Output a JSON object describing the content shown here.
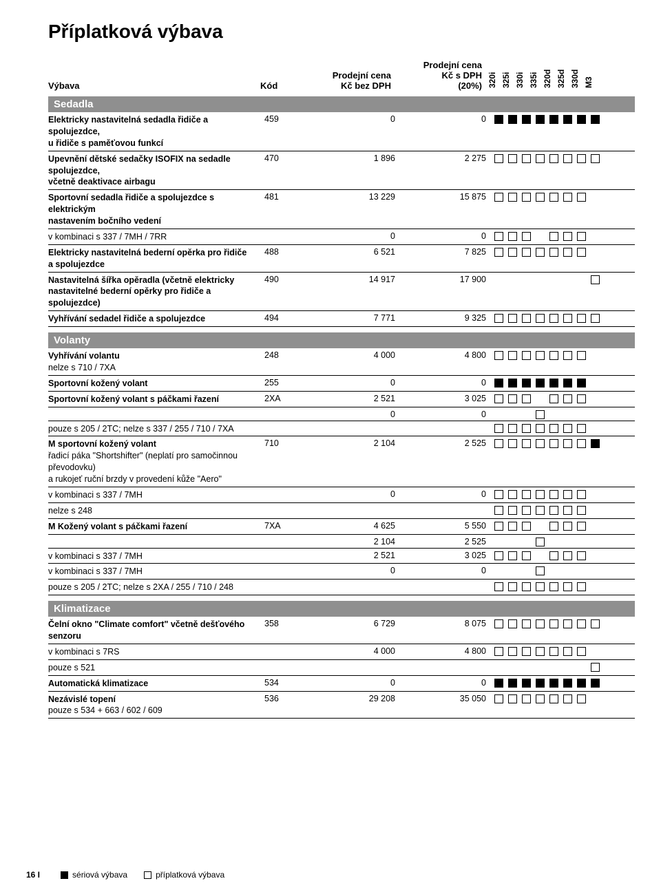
{
  "title": "Příplatková výbava",
  "columns": {
    "desc": "Výbava",
    "code": "Kód",
    "price1_line1": "Prodejní cena",
    "price1_line2": "Kč bez DPH",
    "price2_line1": "Prodejní cena",
    "price2_line2": "Kč s DPH",
    "price2_line3": "(20%)"
  },
  "models": [
    "320i",
    "325i",
    "330i",
    "335i",
    "320d",
    "325d",
    "330d",
    "M3"
  ],
  "sections": [
    {
      "title": "Sedadla",
      "rows": [
        {
          "desc": "Elektricky nastavitelná sedadla řidiče a spolujezdce,\nu řidiče s paměťovou funkcí",
          "code": "459",
          "p1": "0",
          "p2": "0",
          "m": [
            "f",
            "f",
            "f",
            "f",
            "f",
            "f",
            "f",
            "f"
          ]
        },
        {
          "desc": "Upevnění dětské sedačky ISOFIX na sedadle spolujezdce,\nvčetně deaktivace airbagu",
          "code": "470",
          "p1": "1 896",
          "p2": "2 275",
          "m": [
            "o",
            "o",
            "o",
            "o",
            "o",
            "o",
            "o",
            "o"
          ]
        },
        {
          "desc": "Sportovní sedadla řidiče a spolujezdce s elektrickým\nnastavením bočního vedení",
          "code": "481",
          "p1": "13 229",
          "p2": "15 875",
          "m": [
            "o",
            "o",
            "o",
            "o",
            "o",
            "o",
            "o",
            "n"
          ]
        },
        {
          "desc": "v kombinaci s 337 / 7MH / 7RR",
          "noteonly": true,
          "code": "",
          "p1": "0",
          "p2": "0",
          "m": [
            "o",
            "o",
            "o",
            "n",
            "o",
            "o",
            "o",
            "n"
          ]
        },
        {
          "desc": "Elektricky nastavitelná bederní opěrka pro řidiče\na spolujezdce",
          "code": "488",
          "p1": "6 521",
          "p2": "7 825",
          "m": [
            "o",
            "o",
            "o",
            "o",
            "o",
            "o",
            "o",
            "n"
          ]
        },
        {
          "desc": "Nastavitelná šířka opěradla (včetně elektricky\nnastavitelné bederní opěrky pro řidiče a spolujezdce)",
          "code": "490",
          "p1": "14 917",
          "p2": "17 900",
          "m": [
            "n",
            "n",
            "n",
            "n",
            "n",
            "n",
            "n",
            "o"
          ]
        },
        {
          "desc": "Vyhřívání sedadel řidiče a spolujezdce",
          "code": "494",
          "p1": "7 771",
          "p2": "9 325",
          "m": [
            "o",
            "o",
            "o",
            "o",
            "o",
            "o",
            "o",
            "o"
          ]
        }
      ]
    },
    {
      "title": "Volanty",
      "rows": [
        {
          "desc": "Vyhřívání volantu",
          "note": "nelze s 710 / 7XA",
          "code": "248",
          "p1": "4 000",
          "p2": "4 800",
          "m": [
            "o",
            "o",
            "o",
            "o",
            "o",
            "o",
            "o",
            "n"
          ]
        },
        {
          "desc": "Sportovní kožený volant",
          "code": "255",
          "p1": "0",
          "p2": "0",
          "m": [
            "f",
            "f",
            "f",
            "f",
            "f",
            "f",
            "f",
            "n"
          ]
        },
        {
          "desc": "Sportovní kožený volant s páčkami řazení",
          "code": "2XA",
          "p1": "2 521",
          "p2": "3 025",
          "m": [
            "o",
            "o",
            "o",
            "n",
            "o",
            "o",
            "o",
            "n"
          ]
        },
        {
          "desc": "",
          "noteonly": true,
          "code": "",
          "p1": "0",
          "p2": "0",
          "m": [
            "n",
            "n",
            "n",
            "o",
            "n",
            "n",
            "n",
            "n"
          ]
        },
        {
          "desc": "pouze s 205 / 2TC; nelze s 337 / 255 / 710 / 7XA",
          "noteonly": true,
          "code": "",
          "p1": "",
          "p2": "",
          "m": [
            "o",
            "o",
            "o",
            "o",
            "o",
            "o",
            "o",
            "n"
          ]
        },
        {
          "desc": "M sportovní kožený volant",
          "note": "řadicí páka \"Shortshifter\" (neplatí pro samočinnou převodovku)\na rukojeť ruční brzdy v provedení kůže \"Aero\"",
          "code": "710",
          "p1": "2 104",
          "p2": "2 525",
          "m": [
            "o",
            "o",
            "o",
            "o",
            "o",
            "o",
            "o",
            "f"
          ]
        },
        {
          "desc": "v kombinaci s 337 / 7MH",
          "noteonly": true,
          "code": "",
          "p1": "0",
          "p2": "0",
          "m": [
            "o",
            "o",
            "o",
            "o",
            "o",
            "o",
            "o",
            "n"
          ]
        },
        {
          "desc": "nelze s 248",
          "noteonly": true,
          "code": "",
          "p1": "",
          "p2": "",
          "m": [
            "o",
            "o",
            "o",
            "o",
            "o",
            "o",
            "o",
            "n"
          ]
        },
        {
          "desc": "M Kožený volant s páčkami řazení",
          "code": "7XA",
          "p1": "4 625",
          "p2": "5 550",
          "m": [
            "o",
            "o",
            "o",
            "n",
            "o",
            "o",
            "o",
            "n"
          ]
        },
        {
          "desc": "",
          "noteonly": true,
          "code": "",
          "p1": "2 104",
          "p2": "2 525",
          "m": [
            "n",
            "n",
            "n",
            "o",
            "n",
            "n",
            "n",
            "n"
          ]
        },
        {
          "desc": "v kombinaci s 337 / 7MH",
          "noteonly": true,
          "code": "",
          "p1": "2 521",
          "p2": "3 025",
          "m": [
            "o",
            "o",
            "o",
            "n",
            "o",
            "o",
            "o",
            "n"
          ]
        },
        {
          "desc": "v kombinaci s 337 / 7MH",
          "noteonly": true,
          "code": "",
          "p1": "0",
          "p2": "0",
          "m": [
            "n",
            "n",
            "n",
            "o",
            "n",
            "n",
            "n",
            "n"
          ]
        },
        {
          "desc": "pouze s 205 / 2TC; nelze s 2XA / 255 / 710 / 248",
          "noteonly": true,
          "code": "",
          "p1": "",
          "p2": "",
          "m": [
            "o",
            "o",
            "o",
            "o",
            "o",
            "o",
            "o",
            "n"
          ]
        }
      ]
    },
    {
      "title": "Klimatizace",
      "rows": [
        {
          "desc": "Čelní okno \"Climate comfort\" včetně dešťového senzoru",
          "code": "358",
          "p1": "6 729",
          "p2": "8 075",
          "m": [
            "o",
            "o",
            "o",
            "o",
            "o",
            "o",
            "o",
            "o"
          ]
        },
        {
          "desc": "v kombinaci s 7RS",
          "noteonly": true,
          "code": "",
          "p1": "4 000",
          "p2": "4 800",
          "m": [
            "o",
            "o",
            "o",
            "o",
            "o",
            "o",
            "o",
            "n"
          ]
        },
        {
          "desc": "pouze s 521",
          "noteonly": true,
          "code": "",
          "p1": "",
          "p2": "",
          "m": [
            "n",
            "n",
            "n",
            "n",
            "n",
            "n",
            "n",
            "o"
          ]
        },
        {
          "desc": "Automatická klimatizace",
          "code": "534",
          "p1": "0",
          "p2": "0",
          "m": [
            "f",
            "f",
            "f",
            "f",
            "f",
            "f",
            "f",
            "f"
          ]
        },
        {
          "desc": "Nezávislé topení",
          "note": "pouze s 534 + 663 / 602 / 609",
          "code": "536",
          "p1": "29 208",
          "p2": "35 050",
          "m": [
            "o",
            "o",
            "o",
            "o",
            "o",
            "o",
            "o",
            "n"
          ]
        }
      ]
    }
  ],
  "footer": {
    "page": "16 I",
    "legend_standard": "sériová výbava",
    "legend_optional": "příplatková výbava"
  }
}
